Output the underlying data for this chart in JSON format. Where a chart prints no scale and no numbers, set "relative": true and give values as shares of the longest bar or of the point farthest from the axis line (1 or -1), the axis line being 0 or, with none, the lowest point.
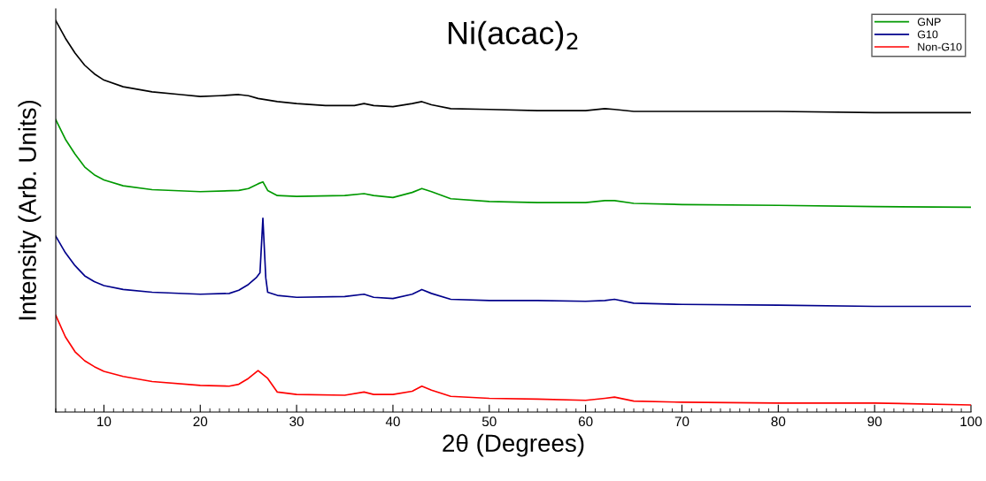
{
  "chart_data": {
    "type": "line",
    "title": "Ni(acac)$_{2}$",
    "xlabel": "2θ (Degrees)",
    "ylabel": "Intensity (Arb. Units)",
    "relative": true,
    "xlim": [
      5,
      100
    ],
    "xticks": [
      10,
      20,
      30,
      40,
      50,
      60,
      70,
      80,
      90,
      100
    ],
    "tick_labels": "x",
    "grid": false,
    "legend": "top right",
    "marker": "none",
    "line_style": "solid",
    "series": [
      {
        "color": "#000000",
        "x": [
          5,
          6,
          7,
          8,
          9,
          10,
          12,
          15,
          18,
          20,
          22,
          24,
          25,
          26,
          28,
          30,
          33,
          36,
          37,
          38,
          40,
          42,
          43,
          44,
          46,
          50,
          55,
          60,
          62,
          63,
          65,
          70,
          80,
          90,
          100
        ],
        "values": [
          1.0,
          0.955,
          0.917,
          0.886,
          0.864,
          0.848,
          0.831,
          0.818,
          0.811,
          0.806,
          0.808,
          0.811,
          0.808,
          0.801,
          0.793,
          0.788,
          0.783,
          0.783,
          0.788,
          0.783,
          0.78,
          0.788,
          0.793,
          0.785,
          0.775,
          0.773,
          0.77,
          0.77,
          0.775,
          0.773,
          0.768,
          0.768,
          0.768,
          0.765,
          0.765
        ]
      },
      {
        "name": "GNP",
        "color": "#009900",
        "x": [
          5,
          6,
          7,
          8,
          9,
          10,
          12,
          15,
          20,
          24,
          25,
          26,
          26.5,
          27,
          28,
          30,
          35,
          37,
          38,
          40,
          42,
          43,
          44,
          46,
          50,
          55,
          60,
          62,
          63,
          65,
          70,
          80,
          90,
          100
        ],
        "values": [
          0.747,
          0.697,
          0.659,
          0.626,
          0.606,
          0.593,
          0.578,
          0.568,
          0.563,
          0.566,
          0.571,
          0.583,
          0.588,
          0.566,
          0.553,
          0.551,
          0.553,
          0.558,
          0.553,
          0.548,
          0.561,
          0.571,
          0.563,
          0.545,
          0.538,
          0.535,
          0.535,
          0.54,
          0.54,
          0.533,
          0.53,
          0.528,
          0.525,
          0.523
        ]
      },
      {
        "name": "G10",
        "color": "#00008b",
        "x": [
          5,
          6,
          7,
          8,
          9,
          10,
          12,
          15,
          20,
          23,
          24,
          25,
          25.8,
          26.2,
          26.5,
          26.8,
          27,
          28,
          30,
          35,
          37,
          38,
          40,
          42,
          43,
          44,
          46,
          50,
          55,
          60,
          62,
          63,
          65,
          70,
          80,
          90,
          100
        ],
        "values": [
          0.449,
          0.407,
          0.374,
          0.348,
          0.333,
          0.323,
          0.313,
          0.306,
          0.301,
          0.303,
          0.311,
          0.326,
          0.343,
          0.356,
          0.495,
          0.343,
          0.306,
          0.298,
          0.293,
          0.295,
          0.301,
          0.293,
          0.29,
          0.301,
          0.313,
          0.303,
          0.288,
          0.285,
          0.285,
          0.283,
          0.285,
          0.288,
          0.278,
          0.275,
          0.273,
          0.27,
          0.27
        ]
      },
      {
        "name": "Non-G10",
        "color": "#ff0000",
        "x": [
          5,
          6,
          7,
          8,
          9,
          10,
          12,
          15,
          20,
          23,
          24,
          25,
          26,
          27,
          28,
          30,
          35,
          37,
          38,
          40,
          42,
          43,
          44,
          46,
          50,
          55,
          60,
          62,
          63,
          65,
          70,
          80,
          90,
          100
        ],
        "values": [
          0.247,
          0.192,
          0.154,
          0.131,
          0.116,
          0.104,
          0.091,
          0.078,
          0.068,
          0.066,
          0.071,
          0.086,
          0.106,
          0.086,
          0.051,
          0.045,
          0.043,
          0.051,
          0.045,
          0.045,
          0.053,
          0.066,
          0.056,
          0.04,
          0.035,
          0.033,
          0.03,
          0.035,
          0.038,
          0.028,
          0.025,
          0.023,
          0.023,
          0.018
        ]
      }
    ]
  }
}
